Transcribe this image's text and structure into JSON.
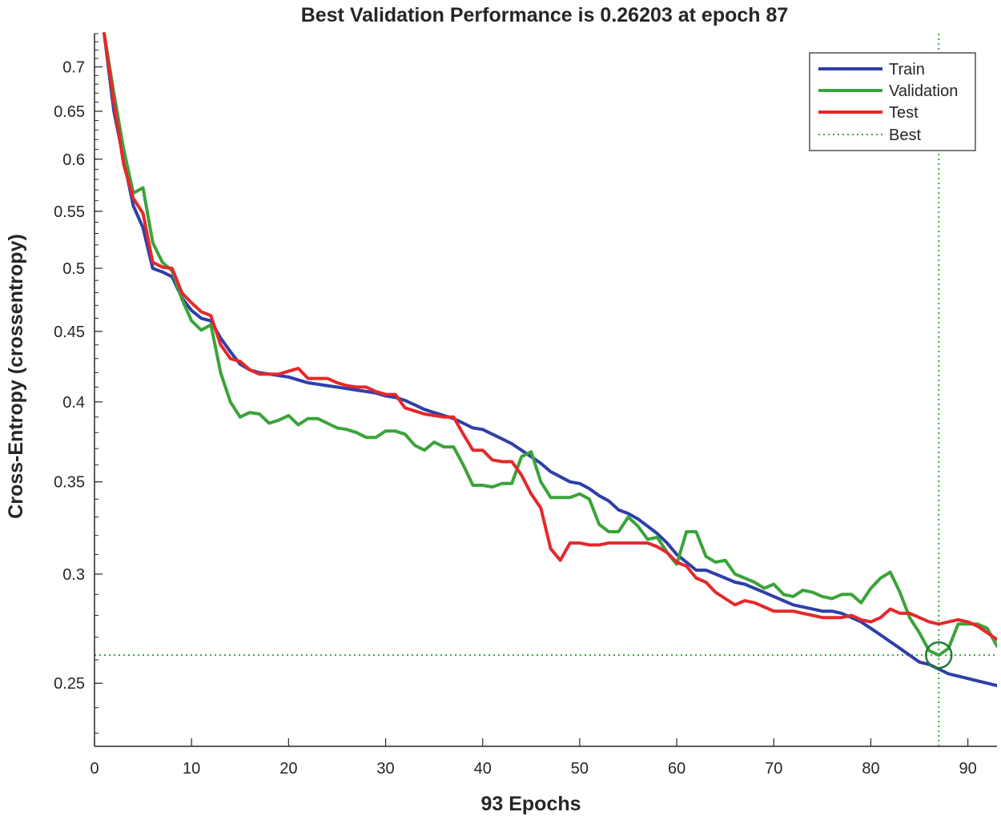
{
  "chart_data": {
    "type": "line",
    "title": "Best Validation Performance is 0.26203 at epoch 87",
    "xlabel": "93 Epochs",
    "ylabel": "Cross-Entropy  (crossentropy)",
    "xlim": [
      0,
      93
    ],
    "ylim": [
      0.225,
      0.74
    ],
    "yscale": "log",
    "xticks": [
      0,
      10,
      20,
      30,
      40,
      50,
      60,
      70,
      80,
      90
    ],
    "yticks": [
      0.25,
      0.3,
      0.35,
      0.4,
      0.45,
      0.5,
      0.55,
      0.6,
      0.65,
      0.7
    ],
    "ytick_labels": [
      "0.25",
      "0.3",
      "0.35",
      "0.4",
      "0.45",
      "0.5",
      "0.55",
      "0.6",
      "0.65",
      "0.7"
    ],
    "legend_position": "top-right",
    "series": [
      {
        "name": "Train",
        "color": "#2f3fa8",
        "x": [
          1,
          2,
          3,
          4,
          5,
          6,
          7,
          8,
          9,
          10,
          11,
          12,
          13,
          14,
          15,
          16,
          17,
          18,
          19,
          20,
          21,
          22,
          23,
          24,
          25,
          26,
          27,
          28,
          29,
          30,
          31,
          32,
          33,
          34,
          35,
          36,
          37,
          38,
          39,
          40,
          41,
          42,
          43,
          44,
          45,
          46,
          47,
          48,
          49,
          50,
          51,
          52,
          53,
          54,
          55,
          56,
          57,
          58,
          59,
          60,
          61,
          62,
          63,
          64,
          65,
          66,
          67,
          68,
          69,
          70,
          71,
          72,
          73,
          74,
          75,
          76,
          77,
          78,
          79,
          80,
          81,
          82,
          83,
          84,
          85,
          86,
          87,
          88,
          89,
          90,
          91,
          92,
          93
        ],
        "values": [
          0.74,
          0.65,
          0.6,
          0.555,
          0.535,
          0.5,
          0.497,
          0.493,
          0.476,
          0.466,
          0.46,
          0.458,
          0.445,
          0.435,
          0.426,
          0.422,
          0.42,
          0.419,
          0.418,
          0.417,
          0.415,
          0.413,
          0.412,
          0.411,
          0.41,
          0.409,
          0.408,
          0.407,
          0.406,
          0.404,
          0.403,
          0.401,
          0.398,
          0.395,
          0.393,
          0.391,
          0.389,
          0.386,
          0.383,
          0.382,
          0.379,
          0.376,
          0.373,
          0.369,
          0.365,
          0.361,
          0.356,
          0.353,
          0.35,
          0.349,
          0.346,
          0.342,
          0.339,
          0.334,
          0.332,
          0.329,
          0.325,
          0.321,
          0.316,
          0.31,
          0.306,
          0.302,
          0.302,
          0.3,
          0.298,
          0.296,
          0.295,
          0.293,
          0.291,
          0.289,
          0.287,
          0.285,
          0.284,
          0.283,
          0.282,
          0.282,
          0.281,
          0.279,
          0.277,
          0.274,
          0.271,
          0.268,
          0.265,
          0.262,
          0.259,
          0.258,
          0.256,
          0.254,
          0.253,
          0.252,
          0.251,
          0.25,
          0.249
        ]
      },
      {
        "name": "Validation",
        "color": "#3aa43a",
        "x": [
          1,
          2,
          3,
          4,
          5,
          6,
          7,
          8,
          9,
          10,
          11,
          12,
          13,
          14,
          15,
          16,
          17,
          18,
          19,
          20,
          21,
          22,
          23,
          24,
          25,
          26,
          27,
          28,
          29,
          30,
          31,
          32,
          33,
          34,
          35,
          36,
          37,
          38,
          39,
          40,
          41,
          42,
          43,
          44,
          45,
          46,
          47,
          48,
          49,
          50,
          51,
          52,
          53,
          54,
          55,
          56,
          57,
          58,
          59,
          60,
          61,
          62,
          63,
          64,
          65,
          66,
          67,
          68,
          69,
          70,
          71,
          72,
          73,
          74,
          75,
          76,
          77,
          78,
          79,
          80,
          81,
          82,
          83,
          84,
          85,
          86,
          87,
          88,
          89,
          90,
          91,
          92,
          93
        ],
        "values": [
          0.74,
          0.67,
          0.61,
          0.567,
          0.572,
          0.522,
          0.505,
          0.498,
          0.475,
          0.458,
          0.451,
          0.455,
          0.42,
          0.4,
          0.39,
          0.393,
          0.392,
          0.386,
          0.388,
          0.391,
          0.385,
          0.389,
          0.389,
          0.386,
          0.383,
          0.382,
          0.38,
          0.377,
          0.377,
          0.381,
          0.381,
          0.379,
          0.372,
          0.369,
          0.374,
          0.371,
          0.371,
          0.36,
          0.348,
          0.348,
          0.347,
          0.349,
          0.349,
          0.365,
          0.368,
          0.35,
          0.341,
          0.341,
          0.341,
          0.343,
          0.34,
          0.326,
          0.322,
          0.322,
          0.33,
          0.325,
          0.318,
          0.319,
          0.311,
          0.305,
          0.322,
          0.322,
          0.309,
          0.306,
          0.307,
          0.3,
          0.298,
          0.296,
          0.293,
          0.295,
          0.29,
          0.289,
          0.292,
          0.291,
          0.289,
          0.288,
          0.29,
          0.29,
          0.286,
          0.293,
          0.298,
          0.301,
          0.291,
          0.279,
          0.272,
          0.264,
          0.262,
          0.265,
          0.276,
          0.276,
          0.276,
          0.274,
          0.266
        ]
      },
      {
        "name": "Test",
        "color": "#e6282b",
        "x": [
          1,
          2,
          3,
          4,
          5,
          6,
          7,
          8,
          9,
          10,
          11,
          12,
          13,
          14,
          15,
          16,
          17,
          18,
          19,
          20,
          21,
          22,
          23,
          24,
          25,
          26,
          27,
          28,
          29,
          30,
          31,
          32,
          33,
          34,
          35,
          36,
          37,
          38,
          39,
          40,
          41,
          42,
          43,
          44,
          45,
          46,
          47,
          48,
          49,
          50,
          51,
          52,
          53,
          54,
          55,
          56,
          57,
          58,
          59,
          60,
          61,
          62,
          63,
          64,
          65,
          66,
          67,
          68,
          69,
          70,
          71,
          72,
          73,
          74,
          75,
          76,
          77,
          78,
          79,
          80,
          81,
          82,
          83,
          84,
          85,
          86,
          87,
          88,
          89,
          90,
          91,
          92,
          93
        ],
        "values": [
          0.74,
          0.66,
          0.595,
          0.562,
          0.548,
          0.505,
          0.501,
          0.5,
          0.48,
          0.472,
          0.465,
          0.462,
          0.44,
          0.43,
          0.428,
          0.422,
          0.419,
          0.419,
          0.419,
          0.421,
          0.423,
          0.416,
          0.416,
          0.416,
          0.413,
          0.411,
          0.41,
          0.41,
          0.407,
          0.405,
          0.405,
          0.396,
          0.394,
          0.392,
          0.391,
          0.39,
          0.39,
          0.379,
          0.369,
          0.369,
          0.363,
          0.362,
          0.362,
          0.354,
          0.343,
          0.335,
          0.313,
          0.307,
          0.316,
          0.316,
          0.315,
          0.315,
          0.316,
          0.316,
          0.316,
          0.316,
          0.316,
          0.314,
          0.311,
          0.306,
          0.304,
          0.298,
          0.296,
          0.291,
          0.288,
          0.285,
          0.287,
          0.286,
          0.284,
          0.282,
          0.282,
          0.282,
          0.281,
          0.28,
          0.279,
          0.279,
          0.279,
          0.28,
          0.278,
          0.277,
          0.279,
          0.283,
          0.281,
          0.281,
          0.279,
          0.277,
          0.276,
          0.277,
          0.278,
          0.277,
          0.275,
          0.272,
          0.269
        ]
      }
    ],
    "best": {
      "label": "Best",
      "epoch": 87,
      "value": 0.26203,
      "color": "#3aa43a",
      "marker_color": "#1e7a32"
    }
  }
}
